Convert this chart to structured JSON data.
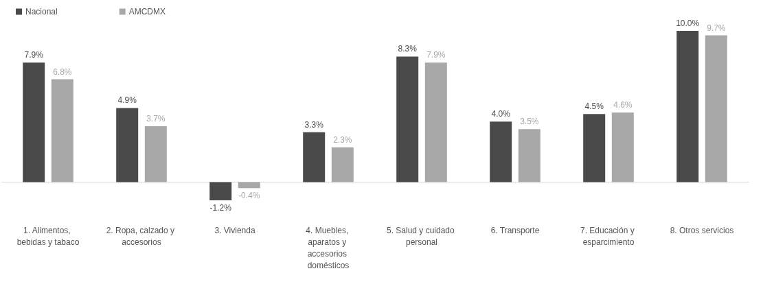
{
  "chart_data": {
    "type": "bar",
    "legend": "top left",
    "categories": [
      "1. Alimentos, bebidas y tabaco",
      "2. Ropa, calzado y accesorios",
      "3. Vivienda",
      "4. Muebles, aparatos y accesorios domésticos",
      "5. Salud y cuidado personal",
      "6. Transporte",
      "7. Educación y esparcimiento",
      "8. Otros servicios"
    ],
    "series": [
      {
        "name": "Nacional",
        "color": "#4a4a4a",
        "values": [
          7.9,
          4.9,
          -1.2,
          3.3,
          8.3,
          4.0,
          4.5,
          10.0
        ],
        "value_labels": [
          "7.9%",
          "4.9%",
          "-1.2%",
          "3.3%",
          "8.3%",
          "4.0%",
          "4.5%",
          "10.0%"
        ]
      },
      {
        "name": "AMCDMX",
        "color": "#a8a8a8",
        "values": [
          6.8,
          3.7,
          -0.4,
          2.3,
          7.9,
          3.5,
          4.6,
          9.7
        ],
        "value_labels": [
          "6.8%",
          "3.7%",
          "-0.4%",
          "2.3%",
          "7.9%",
          "3.5%",
          "4.6%",
          "9.7%"
        ]
      }
    ]
  }
}
